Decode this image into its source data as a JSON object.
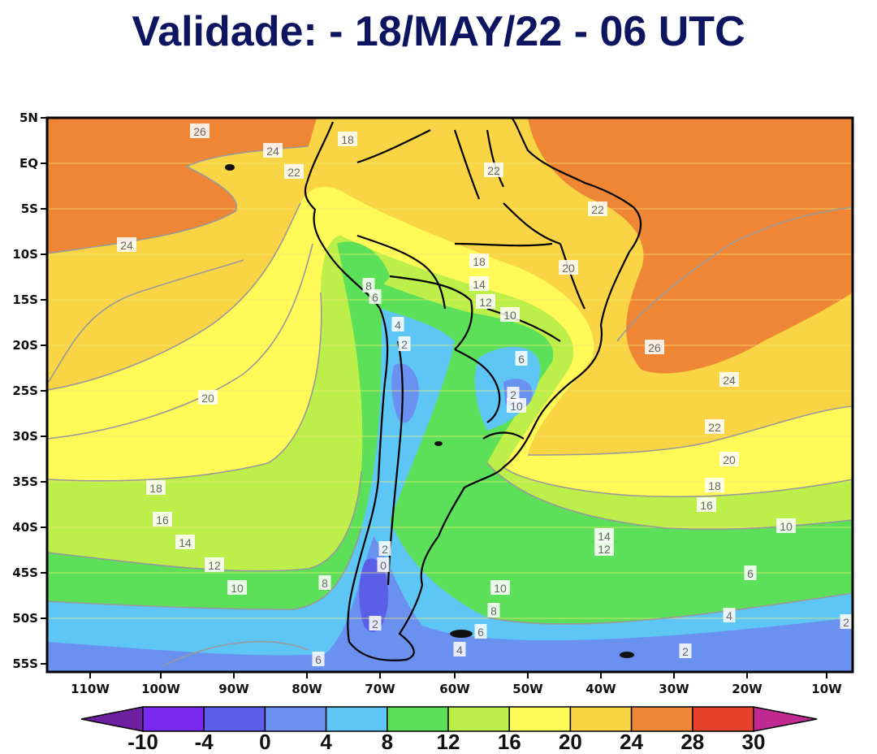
{
  "title": "Validade: - 18/MAY/22 - 06 UTC",
  "lat_labels": [
    "5N",
    "EQ",
    "5S",
    "10S",
    "15S",
    "20S",
    "25S",
    "30S",
    "35S",
    "40S",
    "45S",
    "50S",
    "55S"
  ],
  "lon_labels": [
    "110W",
    "100W",
    "90W",
    "80W",
    "70W",
    "60W",
    "50W",
    "40W",
    "30W",
    "20W",
    "10W"
  ],
  "colorbar": {
    "ticks": [
      "-10",
      "-4",
      "0",
      "4",
      "8",
      "12",
      "16",
      "20",
      "24",
      "28",
      "30"
    ],
    "colors": [
      "#6d1fa0",
      "#7a2af0",
      "#5b5fe8",
      "#6a90f0",
      "#5ec6f5",
      "#5ce05a",
      "#bdef4a",
      "#fffa57",
      "#f9d445",
      "#ee8636",
      "#e8412b",
      "#c02a92"
    ]
  },
  "contour_labels": [
    "26",
    "24",
    "22",
    "18",
    "24",
    "22",
    "22",
    "18",
    "14",
    "12",
    "20",
    "8",
    "6",
    "4",
    "2",
    "10",
    "6",
    "26",
    "24",
    "20",
    "22",
    "20",
    "18",
    "16",
    "18",
    "16",
    "14",
    "12",
    "10",
    "14",
    "12",
    "10",
    "8",
    "10",
    "2",
    "0",
    "8",
    "6",
    "4",
    "2",
    "6",
    "4",
    "2",
    "6",
    "10",
    "2",
    "2"
  ]
}
